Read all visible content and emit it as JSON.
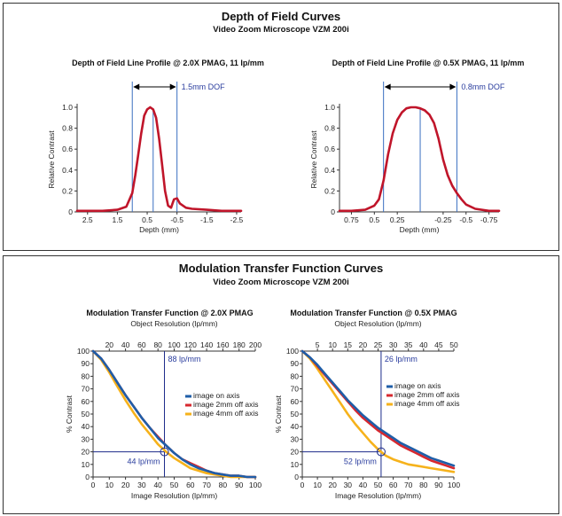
{
  "dof_section": {
    "title": "Depth of Field Curves",
    "subtitle": "Video Zoom Microscope VZM 200i"
  },
  "mtf_section": {
    "title": "Modulation Transfer Function Curves",
    "subtitle": "Video Zoom Microscope VZM 200i"
  },
  "colors": {
    "curve_dof": "#c0152a",
    "marker": "#3a6fc0",
    "annotation_text": "#2a3d9e",
    "series_on_axis": "#1f5ea8",
    "series_2mm": "#d7282f",
    "series_4mm": "#f6b21b"
  },
  "chart_data": [
    {
      "type": "line",
      "title": "Depth of Field Line Profile @ 2.0X PMAG, 11 lp/mm",
      "xlabel": "Depth (mm)",
      "ylabel": "Relative Contrast",
      "xlim": [
        2.85,
        -2.65
      ],
      "ylim": [
        0,
        1.0
      ],
      "x_ticks": [
        2.5,
        1.5,
        0.5,
        -0.5,
        -1.5,
        -2.5
      ],
      "x_tick_labels": [
        "2.5",
        "1.5",
        "0.5",
        "-0.5",
        "-1.5",
        "-2.5"
      ],
      "y_ticks": [
        0,
        0.2,
        0.4,
        0.6,
        0.8,
        1.0
      ],
      "y_tick_labels": [
        "0",
        "0.2",
        "0.4",
        "0.6",
        "0.8",
        "1.0"
      ],
      "grid": false,
      "annotation": "1.5mm DOF",
      "dof_markers_x": [
        1.0,
        -0.5
      ],
      "peak_marker_x": 0.3,
      "series": [
        {
          "x": [
            2.85,
            2.5,
            2.0,
            1.5,
            1.2,
            1.0,
            0.9,
            0.8,
            0.7,
            0.6,
            0.5,
            0.4,
            0.3,
            0.2,
            0.1,
            0.0,
            -0.1,
            -0.2,
            -0.3,
            -0.35,
            -0.4,
            -0.5,
            -0.6,
            -0.8,
            -1.0,
            -1.5,
            -2.0,
            -2.5,
            -2.65
          ],
          "y": [
            0.01,
            0.01,
            0.01,
            0.02,
            0.05,
            0.18,
            0.35,
            0.55,
            0.75,
            0.92,
            0.98,
            1.0,
            0.98,
            0.9,
            0.7,
            0.45,
            0.2,
            0.06,
            0.04,
            0.08,
            0.12,
            0.13,
            0.08,
            0.04,
            0.03,
            0.02,
            0.01,
            0.01,
            0.01
          ]
        }
      ]
    },
    {
      "type": "line",
      "title": "Depth of Field Line Profile @ 0.5X PMAG, 11 lp/mm",
      "xlabel": "Depth (mm)",
      "ylabel": "Relative Contrast",
      "xlim": [
        0.88,
        -0.86
      ],
      "ylim": [
        0,
        1.0
      ],
      "x_ticks": [
        0.75,
        0.5,
        0.25,
        -0.25,
        -0.5,
        -0.75
      ],
      "x_tick_labels": [
        "0.75",
        "0.5",
        "0.25",
        "-0.25",
        "-0.5",
        "-0.75"
      ],
      "y_ticks": [
        0,
        0.2,
        0.4,
        0.6,
        0.8,
        1.0
      ],
      "y_tick_labels": [
        "0",
        "0.2",
        "0.4",
        "0.6",
        "0.8",
        "1.0"
      ],
      "grid": false,
      "annotation": "0.8mm DOF",
      "dof_markers_x": [
        0.4,
        -0.4
      ],
      "peak_marker_x": 0.0,
      "series": [
        {
          "x": [
            0.88,
            0.75,
            0.6,
            0.5,
            0.45,
            0.4,
            0.35,
            0.3,
            0.25,
            0.2,
            0.15,
            0.1,
            0.05,
            0.0,
            -0.05,
            -0.1,
            -0.15,
            -0.2,
            -0.25,
            -0.3,
            -0.35,
            -0.4,
            -0.45,
            -0.5,
            -0.6,
            -0.75,
            -0.86
          ],
          "y": [
            0.01,
            0.01,
            0.02,
            0.06,
            0.12,
            0.3,
            0.55,
            0.75,
            0.88,
            0.95,
            0.99,
            1.0,
            1.0,
            0.99,
            0.97,
            0.93,
            0.85,
            0.7,
            0.5,
            0.35,
            0.25,
            0.18,
            0.12,
            0.07,
            0.03,
            0.01,
            0.01
          ]
        }
      ]
    },
    {
      "type": "line",
      "title": "Modulation Transfer Function @ 2.0X PMAG",
      "xlabel": "Image Resolution (lp/mm)",
      "x2label": "Object Resolution (lp/mm)",
      "ylabel": "% Contrast",
      "xlim": [
        0,
        100
      ],
      "ylim": [
        0,
        100
      ],
      "x_ticks": [
        0,
        10,
        20,
        30,
        40,
        50,
        60,
        70,
        80,
        90,
        100
      ],
      "x_tick_labels": [
        "0",
        "10",
        "20",
        "30",
        "40",
        "50",
        "60",
        "70",
        "80",
        "90",
        "100"
      ],
      "x2_ticks_image_units": [
        10,
        20,
        30,
        40,
        50,
        60,
        70,
        80,
        90,
        100
      ],
      "x2_tick_labels": [
        "20",
        "40",
        "60",
        "80",
        "100",
        "120",
        "140",
        "160",
        "180",
        "200"
      ],
      "y_ticks": [
        0,
        10,
        20,
        30,
        40,
        50,
        60,
        70,
        80,
        90,
        100
      ],
      "y_tick_labels": [
        "0",
        "10",
        "20",
        "30",
        "40",
        "50",
        "60",
        "70",
        "80",
        "90",
        "100"
      ],
      "grid": false,
      "legend_position": "right",
      "cutoff_x": 44,
      "cutoff_y": 20,
      "annotation_image": "44 lp/mm",
      "annotation_object": "88 lp/mm",
      "x": [
        0,
        5,
        10,
        15,
        20,
        25,
        30,
        35,
        40,
        45,
        50,
        55,
        60,
        65,
        70,
        75,
        80,
        85,
        90,
        95,
        100
      ],
      "series": [
        {
          "name": "image on axis",
          "values": [
            100,
            94,
            85,
            75,
            65,
            56,
            47,
            39,
            31,
            25,
            19,
            14,
            10,
            7,
            5,
            3,
            2,
            1,
            1,
            0,
            0
          ]
        },
        {
          "name": "image 2mm off axis",
          "values": [
            100,
            94,
            85,
            75,
            65,
            56,
            47,
            39,
            32,
            25,
            19,
            14,
            11,
            8,
            5,
            3,
            2,
            1,
            1,
            0,
            0
          ]
        },
        {
          "name": "image 4mm off axis",
          "values": [
            100,
            93,
            83,
            72,
            61,
            51,
            42,
            34,
            26,
            20,
            15,
            11,
            7,
            5,
            3,
            2,
            1,
            0,
            0,
            0,
            0
          ]
        }
      ]
    },
    {
      "type": "line",
      "title": "Modulation Transfer Function @ 0.5X PMAG",
      "xlabel": "Image Resolution (lp/mm)",
      "x2label": "Object Resolution (lp/mm)",
      "ylabel": "% Contrast",
      "xlim": [
        0,
        100
      ],
      "ylim": [
        0,
        100
      ],
      "x_ticks": [
        0,
        10,
        20,
        30,
        40,
        50,
        60,
        70,
        80,
        90,
        100
      ],
      "x_tick_labels": [
        "0",
        "10",
        "20",
        "30",
        "40",
        "50",
        "60",
        "70",
        "80",
        "90",
        "100"
      ],
      "x2_ticks_image_units": [
        10,
        20,
        30,
        40,
        50,
        60,
        70,
        80,
        90,
        100
      ],
      "x2_tick_labels": [
        "5",
        "10",
        "15",
        "20",
        "25",
        "30",
        "35",
        "40",
        "45",
        "50"
      ],
      "y_ticks": [
        0,
        10,
        20,
        30,
        40,
        50,
        60,
        70,
        80,
        90,
        100
      ],
      "y_tick_labels": [
        "0",
        "10",
        "20",
        "30",
        "40",
        "50",
        "60",
        "70",
        "80",
        "90",
        "100"
      ],
      "grid": false,
      "legend_position": "right",
      "cutoff_x": 52,
      "cutoff_y": 20,
      "annotation_image": "52 lp/mm",
      "annotation_object": "26 lp/mm",
      "x": [
        0,
        5,
        10,
        15,
        20,
        25,
        30,
        35,
        40,
        45,
        50,
        55,
        60,
        65,
        70,
        75,
        80,
        85,
        90,
        95,
        100
      ],
      "series": [
        {
          "name": "image on axis",
          "values": [
            100,
            95,
            89,
            82,
            75,
            68,
            61,
            55,
            49,
            44,
            39,
            35,
            31,
            27,
            24,
            21,
            18,
            15,
            13,
            11,
            9
          ]
        },
        {
          "name": "image 2mm off axis",
          "values": [
            100,
            95,
            88,
            81,
            74,
            67,
            60,
            53,
            47,
            42,
            37,
            33,
            29,
            25,
            22,
            19,
            16,
            13,
            11,
            9,
            7
          ]
        },
        {
          "name": "image 4mm off axis",
          "values": [
            100,
            94,
            86,
            77,
            68,
            59,
            50,
            42,
            35,
            28,
            22,
            17,
            14,
            12,
            10,
            9,
            8,
            7,
            6,
            5,
            4
          ]
        }
      ]
    }
  ]
}
